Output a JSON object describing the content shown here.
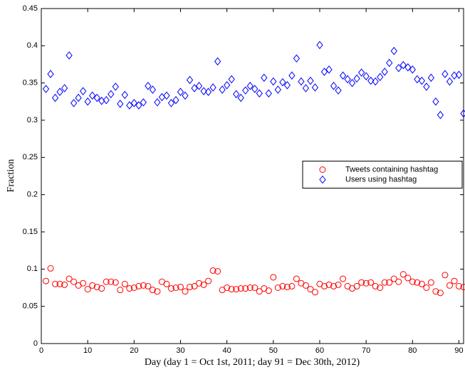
{
  "chart_data": {
    "type": "scatter",
    "xlabel": "Day (day 1 = Oct 1st, 2011; day 91 = Dec 30th, 2012)",
    "ylabel": "Fraction",
    "x": [
      1,
      2,
      3,
      4,
      5,
      6,
      7,
      8,
      9,
      10,
      11,
      12,
      13,
      14,
      15,
      16,
      17,
      18,
      19,
      20,
      21,
      22,
      23,
      24,
      25,
      26,
      27,
      28,
      29,
      30,
      31,
      32,
      33,
      34,
      35,
      36,
      37,
      38,
      39,
      40,
      41,
      42,
      43,
      44,
      45,
      46,
      47,
      48,
      49,
      50,
      51,
      52,
      53,
      54,
      55,
      56,
      57,
      58,
      59,
      60,
      61,
      62,
      63,
      64,
      65,
      66,
      67,
      68,
      69,
      70,
      71,
      72,
      73,
      74,
      75,
      76,
      77,
      78,
      79,
      80,
      81,
      82,
      83,
      84,
      85,
      86,
      87,
      88,
      89,
      90,
      91
    ],
    "series": [
      {
        "name": "Tweets containing hashtag",
        "color": "#ff0000",
        "marker": "circle",
        "values": [
          0.084,
          0.101,
          0.08,
          0.08,
          0.079,
          0.087,
          0.083,
          0.078,
          0.081,
          0.073,
          0.078,
          0.076,
          0.074,
          0.083,
          0.083,
          0.082,
          0.072,
          0.08,
          0.074,
          0.075,
          0.077,
          0.078,
          0.077,
          0.072,
          0.07,
          0.083,
          0.08,
          0.074,
          0.075,
          0.076,
          0.07,
          0.076,
          0.077,
          0.081,
          0.079,
          0.084,
          0.098,
          0.097,
          0.072,
          0.075,
          0.073,
          0.073,
          0.074,
          0.074,
          0.075,
          0.075,
          0.07,
          0.074,
          0.071,
          0.089,
          0.075,
          0.077,
          0.076,
          0.077,
          0.087,
          0.081,
          0.078,
          0.073,
          0.069,
          0.08,
          0.077,
          0.079,
          0.077,
          0.079,
          0.087,
          0.077,
          0.074,
          0.077,
          0.082,
          0.081,
          0.082,
          0.077,
          0.075,
          0.082,
          0.082,
          0.087,
          0.083,
          0.093,
          0.088,
          0.083,
          0.082,
          0.08,
          0.075,
          0.082,
          0.07,
          0.068,
          0.092,
          0.078,
          0.084,
          0.077,
          0.076
        ]
      },
      {
        "name": "Users using hashtag",
        "color": "#0000ff",
        "marker": "diamond",
        "values": [
          0.342,
          0.362,
          0.33,
          0.338,
          0.343,
          0.387,
          0.323,
          0.33,
          0.339,
          0.325,
          0.333,
          0.33,
          0.326,
          0.327,
          0.335,
          0.345,
          0.322,
          0.334,
          0.32,
          0.323,
          0.32,
          0.324,
          0.346,
          0.341,
          0.324,
          0.331,
          0.333,
          0.323,
          0.327,
          0.338,
          0.333,
          0.354,
          0.343,
          0.346,
          0.339,
          0.338,
          0.344,
          0.379,
          0.341,
          0.347,
          0.355,
          0.335,
          0.33,
          0.34,
          0.346,
          0.342,
          0.336,
          0.357,
          0.336,
          0.352,
          0.341,
          0.351,
          0.347,
          0.36,
          0.383,
          0.352,
          0.343,
          0.353,
          0.344,
          0.401,
          0.365,
          0.368,
          0.346,
          0.34,
          0.36,
          0.355,
          0.35,
          0.356,
          0.364,
          0.359,
          0.353,
          0.352,
          0.358,
          0.365,
          0.377,
          0.393,
          0.37,
          0.374,
          0.371,
          0.368,
          0.355,
          0.353,
          0.345,
          0.357,
          0.325,
          0.307,
          0.362,
          0.352,
          0.36,
          0.361,
          0.309
        ]
      }
    ],
    "xlim": [
      0,
      91
    ],
    "xticks": [
      0,
      10,
      20,
      30,
      40,
      50,
      60,
      70,
      80,
      90
    ],
    "ylim": [
      0,
      0.45
    ],
    "yticks": [
      0,
      0.05,
      0.1,
      0.15,
      0.2,
      0.25,
      0.3,
      0.35,
      0.4,
      0.45
    ],
    "grid": false,
    "legend": "right"
  }
}
